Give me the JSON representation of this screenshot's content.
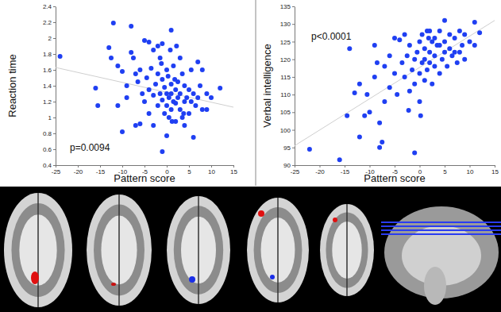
{
  "chart_data": [
    {
      "type": "scatter",
      "x_label": "Pattern score",
      "y_label": "Reaction time",
      "annotation": "p=0.0094",
      "color": "#1f3ff2",
      "marker": "circle",
      "xlim": [
        -25,
        15
      ],
      "xticks": [
        -25,
        -20,
        -15,
        -10,
        -5,
        0,
        5,
        10,
        15
      ],
      "ylim": [
        0.4,
        2.4
      ],
      "yticks": [
        0.4,
        0.6,
        0.8,
        1,
        1.2,
        1.4,
        1.6,
        1.8,
        2,
        2.2,
        2.4
      ],
      "x": [
        -24,
        -16,
        -15.5,
        -13,
        -12,
        -12.5,
        -11,
        -11,
        -10,
        -10,
        -9,
        -9,
        -8,
        -8,
        -7,
        -7,
        -6.5,
        -6,
        -6,
        -5.5,
        -5,
        -5,
        -4.5,
        -4,
        -4,
        -4,
        -3.5,
        -3,
        -3,
        -2.5,
        -2,
        -2,
        -2,
        -1.5,
        -1.5,
        -1,
        -1,
        -1,
        -1,
        -0.5,
        -0.5,
        0,
        0,
        0,
        0,
        0.3,
        0.5,
        0.5,
        1,
        1,
        1,
        1,
        1.2,
        1.5,
        1.5,
        2,
        2,
        2,
        2.5,
        2.5,
        3,
        3,
        3,
        3.5,
        3.5,
        4,
        4,
        4,
        4.5,
        5,
        5,
        5.5,
        5.5,
        6,
        6,
        6.5,
        7,
        7,
        7.5,
        8,
        8,
        9,
        9,
        10,
        12,
        -3,
        -7.5,
        0.8,
        2.2,
        -1.2,
        3.8,
        1.8
      ],
      "y": [
        1.77,
        1.37,
        1.15,
        1.88,
        2.19,
        1.75,
        1.65,
        1.15,
        1.58,
        0.82,
        1.4,
        1.25,
        2.15,
        1.82,
        1.55,
        0.9,
        1.45,
        1.6,
        0.92,
        1.3,
        1.97,
        1.2,
        1.5,
        1.95,
        1.35,
        1.05,
        1.62,
        0.9,
        1.28,
        1.42,
        1.9,
        1.55,
        1.15,
        1.75,
        1.3,
        1.93,
        1.48,
        1.22,
        0.57,
        1.38,
        1.05,
        0.77,
        1.6,
        1.3,
        1.15,
        1.52,
        1.25,
        1.0,
        2.1,
        1.42,
        1.3,
        1.1,
        0.95,
        1.2,
        1.65,
        1.35,
        1.18,
        0.95,
        1.45,
        1.25,
        1.75,
        1.1,
        1.3,
        1.55,
        1.0,
        1.2,
        0.9,
        1.4,
        1.25,
        1.35,
        1.05,
        1.6,
        1.2,
        0.75,
        1.3,
        1.15,
        1.7,
        1.25,
        1.4,
        1.6,
        1.1,
        1.1,
        1.3,
        1.25,
        1.37,
        1.85,
        1.75,
        1.85,
        1.9,
        1.68,
        1.05,
        1.48
      ],
      "fit": {
        "x": [
          -25,
          15
        ],
        "y": [
          1.63,
          1.13
        ]
      }
    },
    {
      "type": "scatter",
      "x_label": "Pattern score",
      "y_label": "Verbal intelligence",
      "annotation": "p<0.0001",
      "color": "#1f3ff2",
      "marker": "circle",
      "xlim": [
        -25,
        15
      ],
      "xticks": [
        -25,
        -20,
        -15,
        -10,
        -5,
        0,
        5,
        10,
        15
      ],
      "ylim": [
        90,
        135
      ],
      "yticks": [
        90,
        95,
        100,
        105,
        110,
        115,
        120,
        125,
        130,
        135
      ],
      "x": [
        -22,
        -16,
        -14.5,
        -14,
        -12,
        -12,
        -11,
        -10.5,
        -10,
        -9,
        -9,
        -8.5,
        -8,
        -7.5,
        -7,
        -7,
        -6,
        -6,
        -5,
        -5,
        -4.5,
        -4,
        -3.5,
        -3,
        -3,
        -2.5,
        -2,
        -2,
        -1.5,
        -1,
        -1,
        -1,
        -0.5,
        0,
        0,
        0,
        0.5,
        0.5,
        1,
        1,
        1,
        1.5,
        1.5,
        2,
        2,
        2,
        2.5,
        2.5,
        3,
        3,
        3,
        3.5,
        4,
        4,
        4,
        4.5,
        5,
        5,
        5,
        5.5,
        6,
        6,
        6.5,
        7,
        7,
        7.5,
        8,
        8,
        8.5,
        9,
        9,
        10,
        11,
        11,
        12,
        -8,
        -13,
        0.2,
        1.8,
        -2.2
      ],
      "y": [
        94.5,
        91.5,
        104,
        123,
        98,
        113,
        104,
        110,
        105,
        124,
        115,
        119,
        95,
        96.5,
        108,
        118,
        112,
        121,
        116,
        126,
        110,
        125.5,
        119,
        127,
        115,
        121,
        111,
        124,
        117,
        93.5,
        113,
        120,
        122,
        108,
        116,
        125,
        119,
        127,
        120,
        114,
        123,
        117,
        128,
        128,
        119,
        122,
        125,
        113,
        126,
        118,
        121,
        124,
        124,
        128,
        116,
        120,
        131,
        122,
        125,
        118,
        123,
        127,
        121,
        122,
        126,
        119,
        122,
        128,
        124,
        127,
        120,
        125,
        130.5,
        124,
        127.5,
        102,
        110.5,
        104,
        126,
        105.5
      ],
      "fit": {
        "x": [
          -25,
          15
        ],
        "y": [
          95.5,
          131
        ]
      }
    }
  ]
}
